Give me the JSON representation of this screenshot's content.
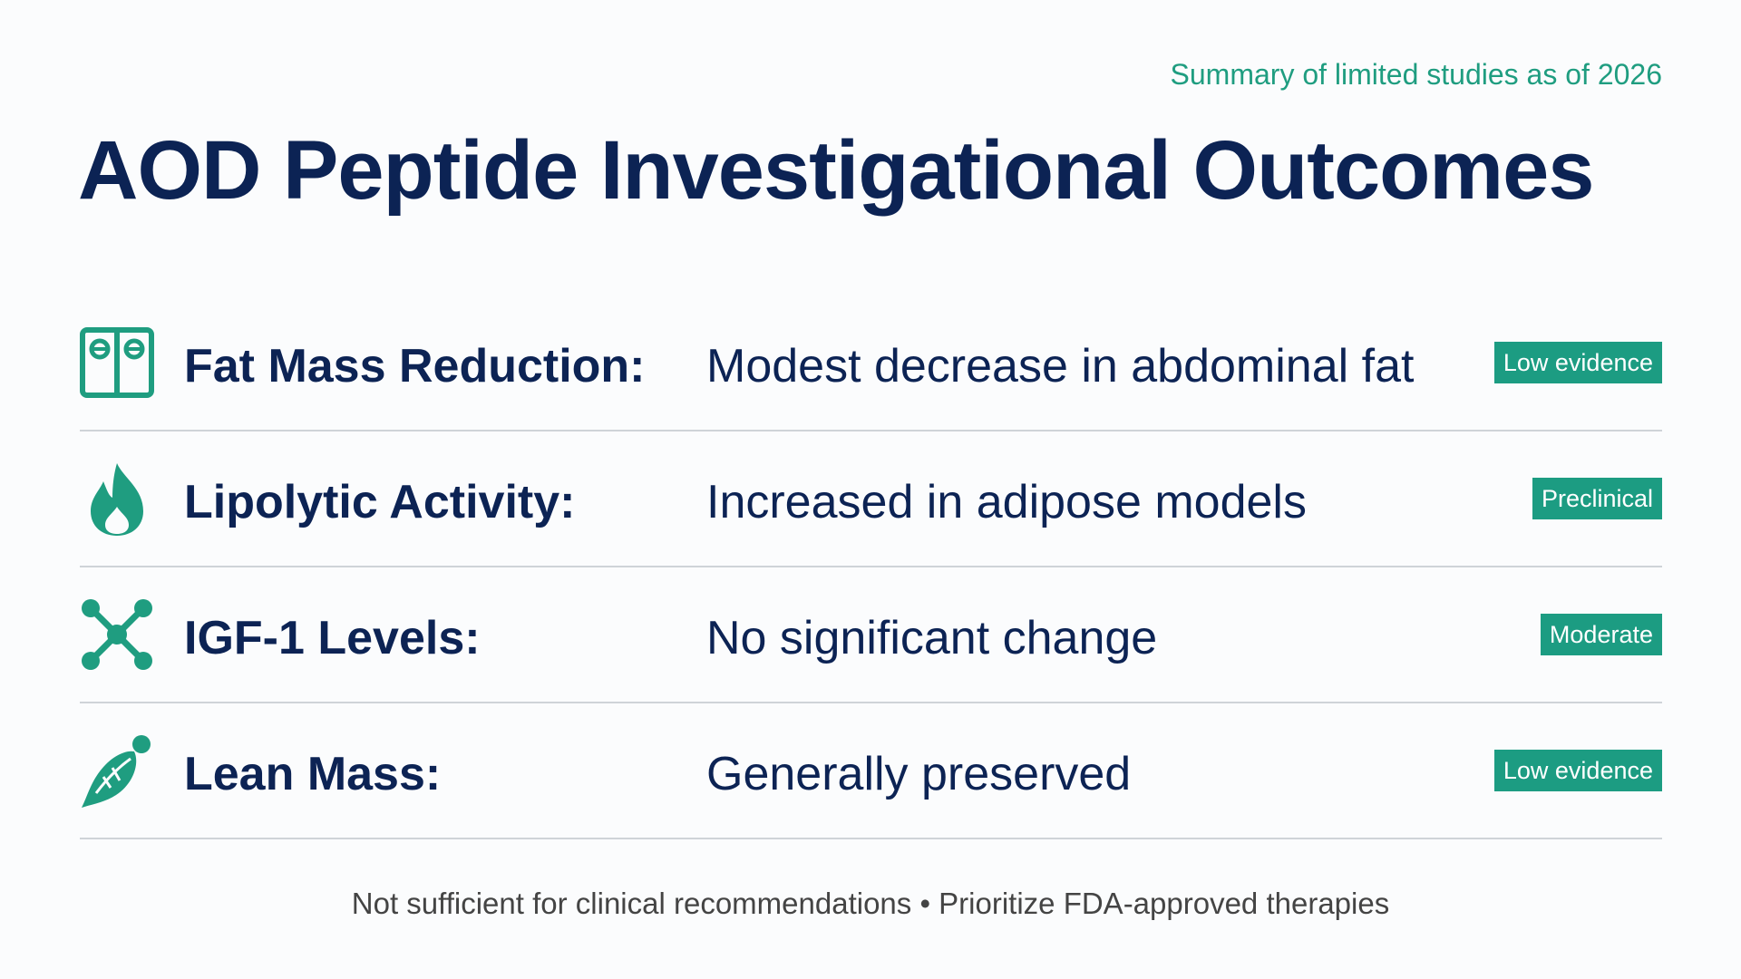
{
  "header": {
    "subtitle": "Summary of limited studies as of 2026",
    "title": "AOD Peptide Investigational Outcomes"
  },
  "rows": [
    {
      "label": "Fat Mass Reduction:",
      "description": "Modest decrease in abdominal fat",
      "badge": "Low evidence"
    },
    {
      "label": "Lipolytic Activity:",
      "description": "Increased in adipose models",
      "badge": "Preclinical"
    },
    {
      "label": "IGF-1 Levels:",
      "description": "No significant change",
      "badge": "Moderate"
    },
    {
      "label": "Lean Mass:",
      "description": "Generally preserved",
      "badge": "Low evidence"
    }
  ],
  "footer": "Not sufficient for clinical recommendations • Prioritize FDA-approved therapies"
}
